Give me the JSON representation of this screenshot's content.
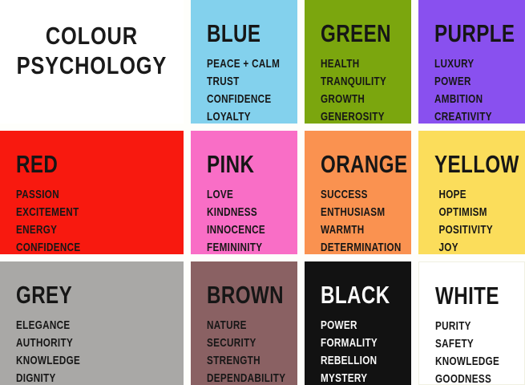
{
  "header": {
    "line1": "COLOUR",
    "line2": "PSYCHOLOGY"
  },
  "accent_colors": {
    "gap": "#FEFEFB",
    "ink": "#161616",
    "ink_inverse": "#FAFAFA"
  },
  "tiles": [
    {
      "id": "blue",
      "name": "BLUE",
      "bg": "#83D1ED",
      "traits": [
        "PEACE + CALM",
        "TRUST",
        "CONFIDENCE",
        "LOYALTY"
      ]
    },
    {
      "id": "green",
      "name": "GREEN",
      "bg": "#7BA60E",
      "traits": [
        "HEALTH",
        "TRANQUILITY",
        "GROWTH",
        "GENEROSITY"
      ]
    },
    {
      "id": "purple",
      "name": "PURPLE",
      "bg": "#8950EF",
      "traits": [
        "LUXURY",
        "POWER",
        "AMBITION",
        "CREATIVITY"
      ]
    },
    {
      "id": "red",
      "name": "RED",
      "bg": "#F8190F",
      "traits": [
        "PASSION",
        "EXCITEMENT",
        "ENERGY",
        "CONFIDENCE"
      ]
    },
    {
      "id": "pink",
      "name": "PINK",
      "bg": "#F96EC6",
      "traits": [
        "LOVE",
        "KINDNESS",
        "INNOCENCE",
        "FEMININITY"
      ]
    },
    {
      "id": "orange",
      "name": "ORANGE",
      "bg": "#FA9250",
      "traits": [
        "SUCCESS",
        "ENTHUSIASM",
        "WARMTH",
        "DETERMINATION"
      ]
    },
    {
      "id": "yellow",
      "name": "YELLOW",
      "bg": "#FBDD5B",
      "traits": [
        "HOPE",
        "OPTIMISM",
        "POSITIVITY",
        "JOY"
      ]
    },
    {
      "id": "grey",
      "name": "GREY",
      "bg": "#A9A8A6",
      "traits": [
        "ELEGANCE",
        "AUTHORITY",
        "KNOWLEDGE",
        "DIGNITY"
      ]
    },
    {
      "id": "brown",
      "name": "BROWN",
      "bg": "#8A6163",
      "traits": [
        "NATURE",
        "SECURITY",
        "STRENGTH",
        "DEPENDABILITY"
      ]
    },
    {
      "id": "black",
      "name": "BLACK",
      "bg": "#121212",
      "text": "#FAFAFA",
      "traits": [
        "POWER",
        "FORMALITY",
        "REBELLION",
        "MYSTERY"
      ]
    },
    {
      "id": "white",
      "name": "WHITE",
      "bg": "#FFFFFF",
      "traits": [
        "PURITY",
        "SAFETY",
        "KNOWLEDGE",
        "GOODNESS"
      ]
    }
  ]
}
